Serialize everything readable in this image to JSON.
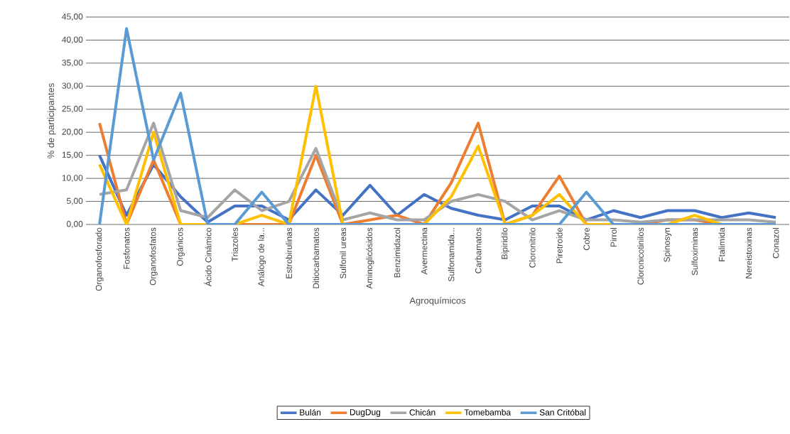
{
  "chart_data": {
    "type": "line",
    "xlabel": "Agroquímicos",
    "ylabel": "% de participantes",
    "categories": [
      "Organofosforado",
      "Fosfonatos",
      "Organofosfatos",
      "Orgánicos",
      "Ácido Cinámico",
      "Triazoles",
      "Análogo de la...",
      "Estrobirulinas",
      "Ditiocarbamatos",
      "Sulfonil ureas",
      "Aminoglicósidos",
      "Benzimidazol",
      "Avermectina",
      "Sulfonamida...",
      "Carbamatos",
      "Bipiridilo",
      "Cloronitrilo",
      "Piretroide",
      "Cobre",
      "Pirrol",
      "Cloronicotinilos",
      "Spinosyn",
      "Sulfoximinas",
      "Ftalimida",
      "Nereistoxinas",
      "Conazol"
    ],
    "series": [
      {
        "name": "Bulán",
        "color": "#4472c4",
        "values": [
          15,
          2,
          13,
          6,
          0.5,
          4,
          4,
          1,
          7.5,
          2,
          8.5,
          2,
          6.5,
          3.5,
          2,
          1,
          4,
          4,
          1,
          3,
          1.5,
          3,
          3,
          1.5,
          2.5,
          1.5
        ]
      },
      {
        "name": "DugDug",
        "color": "#ed7d31",
        "values": [
          22,
          0,
          14,
          0,
          0,
          0,
          0,
          0,
          15,
          0,
          1,
          2,
          0,
          9,
          22,
          0,
          2,
          10.5,
          0,
          0,
          0,
          1,
          1,
          0,
          0,
          0
        ]
      },
      {
        "name": "Chicán",
        "color": "#a5a5a5",
        "values": [
          6.5,
          7.5,
          22,
          3,
          1.5,
          7.5,
          3,
          5,
          16.5,
          1,
          2.5,
          1,
          1,
          5,
          6.5,
          5,
          1,
          3,
          1,
          1,
          0.5,
          1,
          1,
          1,
          1,
          0.5
        ]
      },
      {
        "name": "Tomebamba",
        "color": "#ffc000",
        "values": [
          13,
          0,
          20,
          0,
          0,
          0,
          2,
          0,
          30,
          0,
          0,
          0,
          0,
          6,
          17,
          0,
          2,
          6.5,
          0,
          0,
          0,
          0,
          2,
          0,
          0,
          0
        ]
      },
      {
        "name": "San Critóbal",
        "color": "#5b9bd5",
        "values": [
          0,
          42.5,
          14,
          28.5,
          0,
          0,
          7,
          0,
          0,
          0,
          0,
          0,
          0,
          0,
          0,
          0,
          0,
          0,
          7,
          0,
          0,
          0,
          0,
          0,
          0,
          0
        ]
      }
    ],
    "ylim": [
      0,
      45
    ],
    "yticks": [
      {
        "value": 0,
        "label": "0,00"
      },
      {
        "value": 5,
        "label": "5,00"
      },
      {
        "value": 10,
        "label": "10,00"
      },
      {
        "value": 15,
        "label": "15,00"
      },
      {
        "value": 20,
        "label": "20,00"
      },
      {
        "value": 25,
        "label": "25,00"
      },
      {
        "value": 30,
        "label": "30,00"
      },
      {
        "value": 35,
        "label": "35,00"
      },
      {
        "value": 40,
        "label": "40,00"
      },
      {
        "value": 45,
        "label": "45,00"
      }
    ],
    "grid": "y",
    "legend": "bottom",
    "marker": "none",
    "line_style": "solid"
  }
}
